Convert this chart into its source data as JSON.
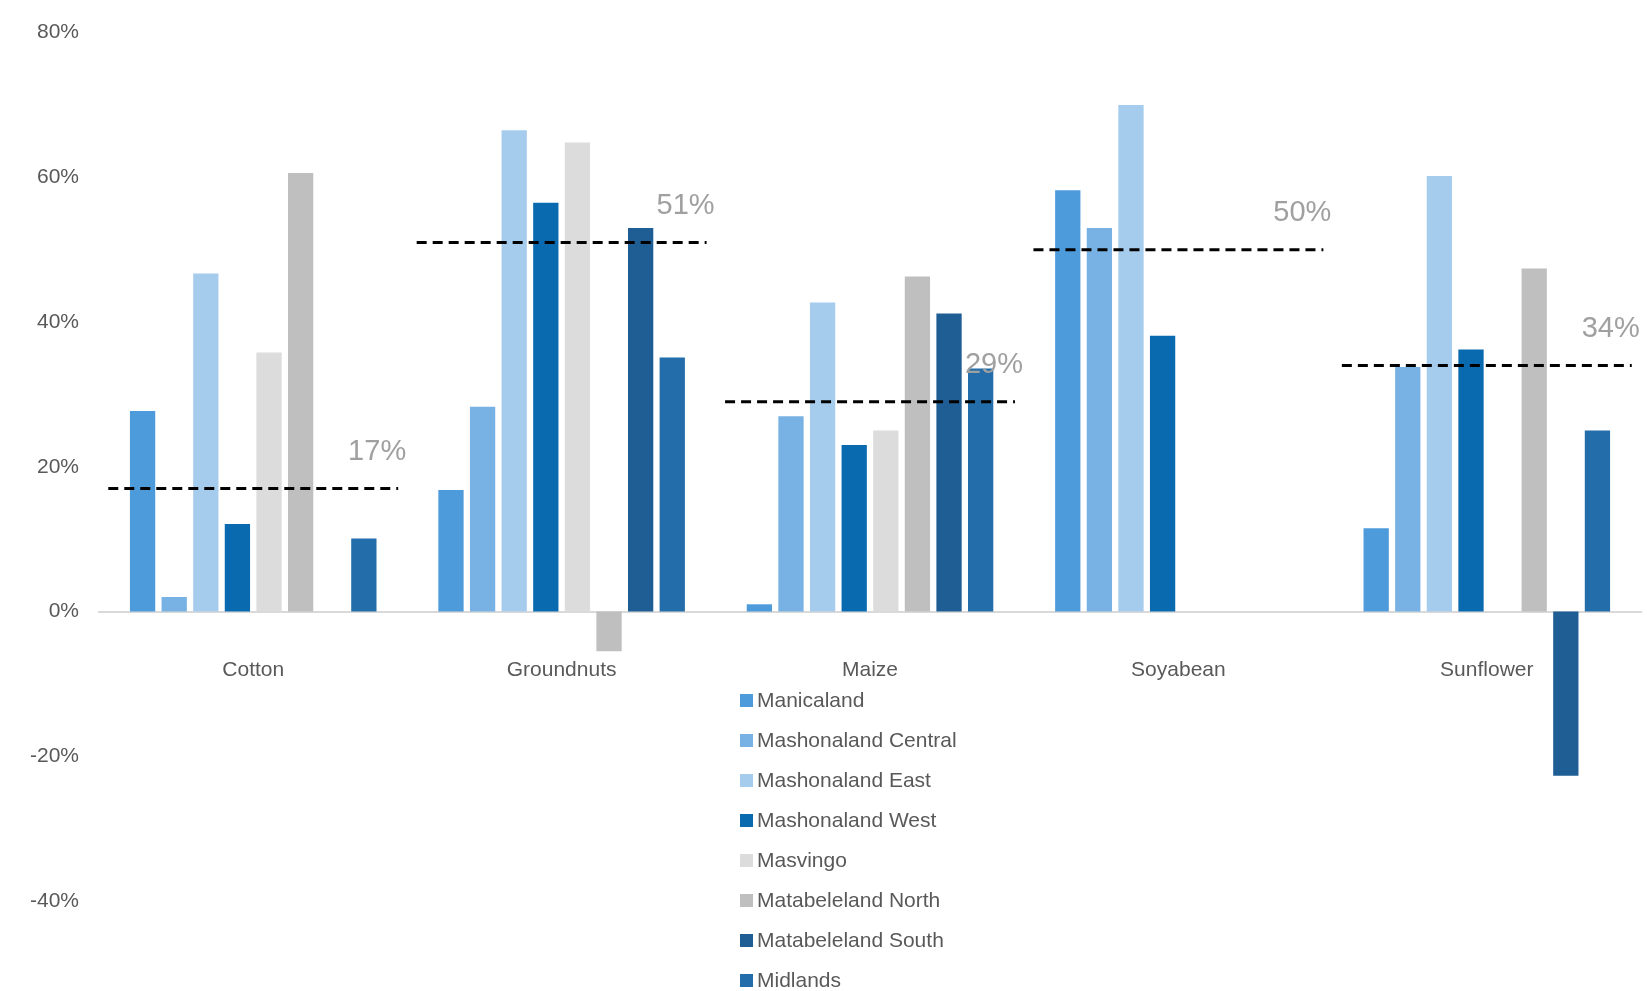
{
  "chart_data": {
    "type": "bar",
    "categories": [
      "Cotton",
      "Groundnuts",
      "Maize",
      "Soyabean",
      "Sunflower"
    ],
    "series": [
      {
        "name": "Manicaland",
        "color": "#4e9bdc",
        "values": [
          27.7,
          16.8,
          1.0,
          58.2,
          11.5
        ]
      },
      {
        "name": "Mashonaland  Central",
        "color": "#78b2e4",
        "values": [
          2.0,
          28.3,
          27.0,
          53.0,
          33.8
        ]
      },
      {
        "name": "Mashonaland East",
        "color": "#a6cced",
        "values": [
          46.7,
          66.5,
          42.7,
          70.0,
          60.2
        ]
      },
      {
        "name": "Mashonaland  West",
        "color": "#0a6ab0",
        "values": [
          12.1,
          56.5,
          23.0,
          38.1,
          36.2
        ]
      },
      {
        "name": "Masvingo",
        "color": "#dcdcdc",
        "values": [
          35.8,
          64.8,
          25.0,
          null,
          null
        ]
      },
      {
        "name": "Matabeleland North",
        "color": "#bfbfbf",
        "values": [
          60.6,
          -5.5,
          46.3,
          null,
          47.4
        ]
      },
      {
        "name": "Matabeleland South",
        "color": "#1f5e95",
        "values": [
          null,
          53.0,
          41.2,
          null,
          -22.7
        ]
      },
      {
        "name": "Midlands",
        "color": "#236daa",
        "values": [
          10.1,
          35.1,
          33.6,
          null,
          25.0
        ]
      }
    ],
    "ylim": [
      -40,
      80
    ],
    "yticks": [
      {
        "value": 80,
        "label": "80%"
      },
      {
        "value": 60,
        "label": "60%"
      },
      {
        "value": 40,
        "label": "40%"
      },
      {
        "value": 20,
        "label": "20%"
      },
      {
        "value": 0,
        "label": "0%"
      },
      {
        "value": -20,
        "label": "-20%"
      },
      {
        "value": -40,
        "label": "-40%"
      }
    ],
    "ref_lines": [
      {
        "axis": "y",
        "value": 17,
        "label": "17%",
        "color": "#000000",
        "line_style": "dashed"
      },
      {
        "axis": "y",
        "value": 51,
        "label": "51%",
        "color": "#000000",
        "line_style": "dashed"
      },
      {
        "axis": "y",
        "value": 29,
        "label": "29%",
        "color": "#000000",
        "line_style": "dashed"
      },
      {
        "axis": "y",
        "value": 50,
        "label": "50%",
        "color": "#000000",
        "line_style": "dashed"
      },
      {
        "axis": "y",
        "value": 34,
        "label": "34%",
        "color": "#000000",
        "line_style": "dashed"
      }
    ],
    "grid": false,
    "legend": "bottom"
  }
}
